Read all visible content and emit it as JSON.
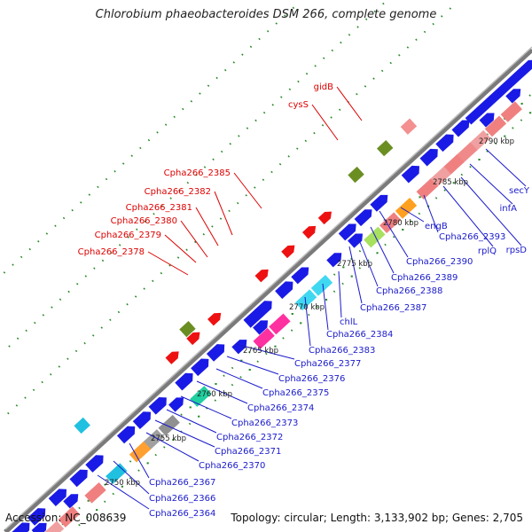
{
  "header": {
    "title": "Chlorobium phaeobacteroides DSM 266, complete genome"
  },
  "footer": {
    "accession": "Accession: NC_008639",
    "summary": "Topology: circular; Length: 3,133,902 bp; Genes: 2,705"
  },
  "colors": {
    "forward_gene": "#1a1ae6",
    "reverse_gene_label": "#dd0000",
    "forward_gene_label": "#1a1acc",
    "backbone": "#888888",
    "dots": "#2a8a2a"
  },
  "scale_labels": [
    "2750 kbp",
    "2755 kbp",
    "2760 kbp",
    "2765 kbp",
    "2770 kbp",
    "2775 kbp",
    "2780 kbp",
    "2785 kbp",
    "2790 kbp"
  ],
  "reverse_gene_labels": [
    "gidB",
    "cysS",
    "Cpha266_2385",
    "Cpha266_2382",
    "Cpha266_2381",
    "Cpha266_2380",
    "Cpha266_2379",
    "Cpha266_2378"
  ],
  "forward_gene_labels": [
    "secY",
    "infA",
    "rpsD",
    "rplQ",
    "Cpha266_2393",
    "engB",
    "Cpha266_2390",
    "Cpha266_2389",
    "Cpha266_2388",
    "Cpha266_2387",
    "chlL",
    "Cpha266_2384",
    "Cpha266_2383",
    "Cpha266_2377",
    "Cpha266_2376",
    "Cpha266_2375",
    "Cpha266_2374",
    "Cpha266_2373",
    "Cpha266_2372",
    "Cpha266_2371",
    "Cpha266_2370",
    "Cpha266_2367",
    "Cpha266_2366",
    "Cpha266_2364"
  ]
}
